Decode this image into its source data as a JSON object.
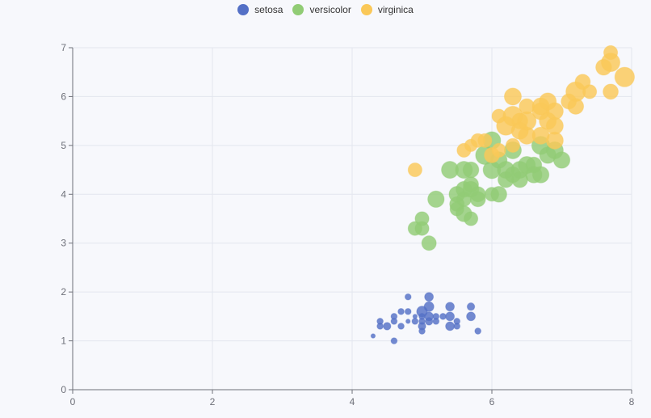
{
  "chart_data": {
    "type": "scatter",
    "title": "",
    "xlabel": "",
    "ylabel": "",
    "xlim": [
      0,
      8
    ],
    "ylim": [
      0,
      7
    ],
    "xticks": [
      "0",
      "2",
      "4",
      "6",
      "8"
    ],
    "yticks": [
      "0",
      "1",
      "2",
      "3",
      "4",
      "5",
      "6",
      "7"
    ],
    "grid": true,
    "legend_position": "top-center",
    "bubble_size_encodes": "third variable",
    "series": [
      {
        "name": "setosa",
        "color": "#5470c6",
        "points": [
          [
            4.3,
            1.1,
            0.1
          ],
          [
            4.4,
            1.3,
            0.2
          ],
          [
            4.4,
            1.4,
            0.2
          ],
          [
            4.5,
            1.3,
            0.3
          ],
          [
            4.6,
            1.0,
            0.2
          ],
          [
            4.6,
            1.4,
            0.2
          ],
          [
            4.6,
            1.5,
            0.2
          ],
          [
            4.7,
            1.3,
            0.2
          ],
          [
            4.7,
            1.6,
            0.2
          ],
          [
            4.8,
            1.4,
            0.1
          ],
          [
            4.8,
            1.6,
            0.2
          ],
          [
            4.8,
            1.9,
            0.2
          ],
          [
            4.9,
            1.4,
            0.2
          ],
          [
            4.9,
            1.5,
            0.1
          ],
          [
            5.0,
            1.2,
            0.2
          ],
          [
            5.0,
            1.3,
            0.3
          ],
          [
            5.0,
            1.4,
            0.2
          ],
          [
            5.0,
            1.5,
            0.2
          ],
          [
            5.0,
            1.6,
            0.6
          ],
          [
            5.1,
            1.4,
            0.3
          ],
          [
            5.1,
            1.5,
            0.4
          ],
          [
            5.1,
            1.7,
            0.5
          ],
          [
            5.1,
            1.9,
            0.4
          ],
          [
            5.2,
            1.4,
            0.2
          ],
          [
            5.2,
            1.5,
            0.2
          ],
          [
            5.3,
            1.5,
            0.2
          ],
          [
            5.4,
            1.3,
            0.4
          ],
          [
            5.4,
            1.5,
            0.4
          ],
          [
            5.4,
            1.7,
            0.4
          ],
          [
            5.5,
            1.3,
            0.2
          ],
          [
            5.5,
            1.4,
            0.2
          ],
          [
            5.7,
            1.5,
            0.4
          ],
          [
            5.7,
            1.7,
            0.3
          ],
          [
            5.8,
            1.2,
            0.2
          ]
        ]
      },
      {
        "name": "versicolor",
        "color": "#91cc75",
        "points": [
          [
            4.9,
            3.3,
            1.0
          ],
          [
            5.0,
            3.5,
            1.0
          ],
          [
            5.0,
            3.3,
            1.0
          ],
          [
            5.1,
            3.0,
            1.1
          ],
          [
            5.2,
            3.9,
            1.4
          ],
          [
            5.4,
            4.5,
            1.5
          ],
          [
            5.5,
            4.0,
            1.3
          ],
          [
            5.5,
            3.8,
            1.1
          ],
          [
            5.5,
            3.7,
            1.0
          ],
          [
            5.6,
            3.6,
            1.3
          ],
          [
            5.6,
            4.5,
            1.5
          ],
          [
            5.6,
            4.1,
            1.3
          ],
          [
            5.6,
            3.9,
            1.1
          ],
          [
            5.7,
            4.5,
            1.3
          ],
          [
            5.7,
            3.5,
            1.0
          ],
          [
            5.7,
            4.2,
            1.2
          ],
          [
            5.7,
            4.1,
            1.3
          ],
          [
            5.8,
            4.0,
            1.2
          ],
          [
            5.8,
            3.9,
            1.2
          ],
          [
            5.9,
            4.8,
            1.8
          ],
          [
            6.0,
            4.0,
            1.0
          ],
          [
            6.0,
            5.1,
            1.6
          ],
          [
            6.0,
            4.5,
            1.6
          ],
          [
            6.1,
            4.7,
            1.4
          ],
          [
            6.1,
            4.0,
            1.3
          ],
          [
            6.2,
            4.5,
            1.5
          ],
          [
            6.2,
            4.3,
            1.3
          ],
          [
            6.3,
            4.9,
            1.5
          ],
          [
            6.3,
            4.4,
            1.3
          ],
          [
            6.4,
            4.5,
            1.5
          ],
          [
            6.4,
            4.3,
            1.3
          ],
          [
            6.5,
            4.6,
            1.5
          ],
          [
            6.6,
            4.6,
            1.3
          ],
          [
            6.6,
            4.4,
            1.4
          ],
          [
            6.7,
            4.4,
            1.4
          ],
          [
            6.7,
            5.0,
            1.7
          ],
          [
            6.8,
            4.8,
            1.4
          ],
          [
            6.9,
            4.9,
            1.5
          ],
          [
            7.0,
            4.7,
            1.4
          ]
        ]
      },
      {
        "name": "virginica",
        "color": "#fac858",
        "points": [
          [
            4.9,
            4.5,
            1.0
          ],
          [
            5.6,
            4.9,
            1.0
          ],
          [
            5.7,
            5.0,
            0.8
          ],
          [
            5.8,
            5.1,
            1.0
          ],
          [
            5.9,
            5.1,
            1.0
          ],
          [
            6.0,
            4.8,
            1.2
          ],
          [
            6.1,
            4.9,
            1.0
          ],
          [
            6.1,
            5.6,
            1.0
          ],
          [
            6.2,
            5.4,
            1.8
          ],
          [
            6.3,
            5.0,
            1.0
          ],
          [
            6.3,
            5.6,
            2.0
          ],
          [
            6.3,
            6.0,
            1.5
          ],
          [
            6.4,
            5.3,
            1.5
          ],
          [
            6.4,
            5.5,
            1.3
          ],
          [
            6.5,
            5.2,
            1.5
          ],
          [
            6.5,
            5.5,
            1.8
          ],
          [
            6.5,
            5.8,
            1.2
          ],
          [
            6.7,
            5.2,
            1.5
          ],
          [
            6.7,
            5.7,
            1.5
          ],
          [
            6.7,
            5.8,
            1.5
          ],
          [
            6.8,
            5.5,
            1.5
          ],
          [
            6.8,
            5.9,
            1.5
          ],
          [
            6.9,
            5.1,
            1.5
          ],
          [
            6.9,
            5.4,
            1.5
          ],
          [
            6.9,
            5.7,
            1.5
          ],
          [
            7.1,
            5.9,
            1.2
          ],
          [
            7.2,
            5.8,
            1.3
          ],
          [
            7.2,
            6.1,
            2.0
          ],
          [
            7.3,
            6.3,
            1.2
          ],
          [
            7.4,
            6.1,
            1.0
          ],
          [
            7.6,
            6.6,
            1.3
          ],
          [
            7.7,
            6.1,
            1.2
          ],
          [
            7.7,
            6.7,
            1.8
          ],
          [
            7.7,
            6.9,
            1.0
          ],
          [
            7.9,
            6.4,
            2.0
          ]
        ]
      }
    ]
  }
}
